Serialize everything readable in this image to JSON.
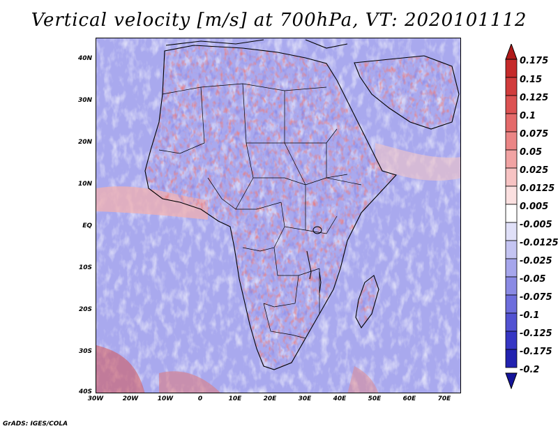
{
  "title": "Vertical velocity [m/s] at 700hPa, VT: 2020101112",
  "credit": "GrADS: IGES/COLA",
  "map": {
    "lat_labels": [
      "40N",
      "30N",
      "20N",
      "10N",
      "EQ",
      "10S",
      "20S",
      "30S",
      "40S"
    ],
    "lon_labels": [
      "30W",
      "20W",
      "10W",
      "0",
      "10E",
      "20E",
      "30E",
      "40E",
      "50E",
      "60E",
      "70E"
    ],
    "region": "Africa"
  },
  "colorbar": {
    "labels": [
      "0.175",
      "0.15",
      "0.125",
      "0.1",
      "0.075",
      "0.05",
      "0.025",
      "0.0125",
      "0.005",
      "-0.005",
      "-0.0125",
      "-0.025",
      "-0.05",
      "-0.075",
      "-0.1",
      "-0.125",
      "-0.175",
      "-0.2"
    ],
    "colors": [
      "#b01a1a",
      "#c52a2a",
      "#d13c3c",
      "#dc5252",
      "#e46a6a",
      "#eb8585",
      "#f1a3a3",
      "#f7c3c3",
      "#fbe0e0",
      "#ffffff",
      "#e0e0f8",
      "#c4c4f2",
      "#a6a6ec",
      "#8a8ae4",
      "#6d6ddc",
      "#5252d2",
      "#3636c4",
      "#2222b0",
      "#14149a"
    ]
  }
}
